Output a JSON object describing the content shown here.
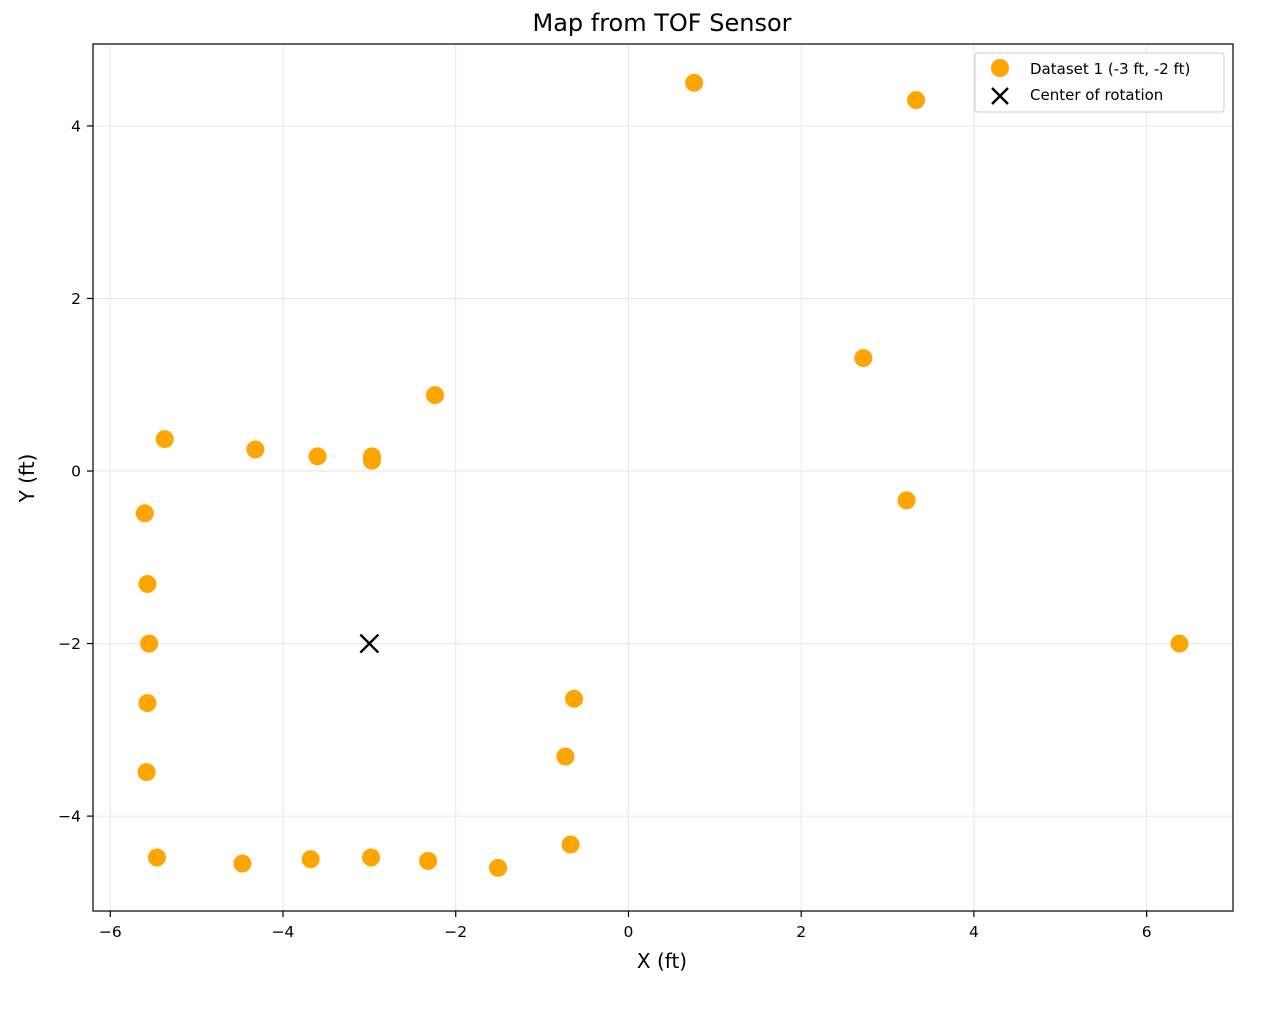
{
  "chart_data": {
    "type": "scatter",
    "title": "Map from TOF Sensor",
    "xlabel": "X (ft)",
    "ylabel": "Y (ft)",
    "xlim": [
      -6.2,
      7.0
    ],
    "ylim": [
      -5.1,
      4.95
    ],
    "xticks": [
      -6,
      -4,
      -2,
      0,
      2,
      4,
      6
    ],
    "yticks": [
      -4,
      -2,
      0,
      2,
      4
    ],
    "xtick_labels": [
      "−6",
      "−4",
      "−2",
      "0",
      "2",
      "4",
      "6"
    ],
    "ytick_labels": [
      "−4",
      "−2",
      "0",
      "2",
      "4"
    ],
    "grid": true,
    "legend_position": "top-right",
    "series": [
      {
        "name": "Dataset 1 (-3 ft, -2 ft)",
        "marker": "circle",
        "color": "#FFA500",
        "points": [
          [
            0.76,
            4.5
          ],
          [
            3.33,
            4.3
          ],
          [
            2.72,
            1.31
          ],
          [
            3.22,
            -0.34
          ],
          [
            6.38,
            -2.0
          ],
          [
            -2.24,
            0.88
          ],
          [
            -2.97,
            0.17
          ],
          [
            -2.97,
            0.12
          ],
          [
            -3.6,
            0.17
          ],
          [
            -4.32,
            0.25
          ],
          [
            -5.37,
            0.37
          ],
          [
            -5.6,
            -0.49
          ],
          [
            -5.57,
            -1.31
          ],
          [
            -5.55,
            -2.0
          ],
          [
            -5.57,
            -2.69
          ],
          [
            -5.58,
            -3.49
          ],
          [
            -5.46,
            -4.48
          ],
          [
            -4.47,
            -4.55
          ],
          [
            -3.68,
            -4.5
          ],
          [
            -2.98,
            -4.48
          ],
          [
            -2.32,
            -4.52
          ],
          [
            -1.51,
            -4.6
          ],
          [
            -0.67,
            -4.33
          ],
          [
            -0.73,
            -3.31
          ],
          [
            -0.63,
            -2.64
          ]
        ]
      },
      {
        "name": "Center of rotation",
        "marker": "x",
        "color": "#000000",
        "points": [
          [
            -3.0,
            -2.0
          ]
        ]
      }
    ]
  }
}
